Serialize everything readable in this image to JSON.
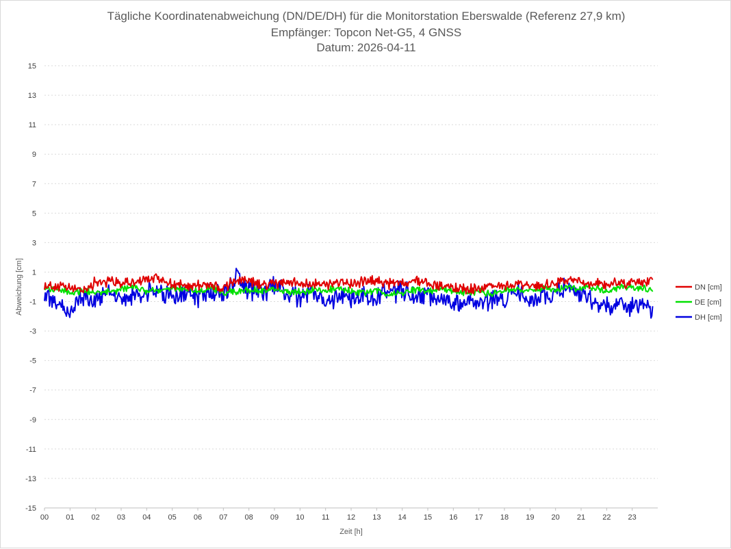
{
  "chart_data": {
    "type": "line",
    "title": "Tägliche Koordinatenabweichung (DN/DE/DH) für die Monitorstation Eberswalde (Referenz 27,9 km)",
    "subtitle_1": "Empfänger: Topcon Net-G5, 4 GNSS",
    "subtitle_2": "Datum: 2026-04-11",
    "xlabel": "Zeit [h]",
    "ylabel": "Abweichung [cm]",
    "xlim": [
      0,
      24
    ],
    "ylim": [
      -15,
      15
    ],
    "grid": true,
    "legend_position": "right",
    "x_tick_labels": [
      "00",
      "01",
      "02",
      "03",
      "04",
      "05",
      "06",
      "07",
      "08",
      "09",
      "10",
      "11",
      "12",
      "13",
      "14",
      "15",
      "16",
      "17",
      "18",
      "19",
      "20",
      "21",
      "22",
      "23"
    ],
    "y_tick_labels": [
      "-15",
      "-13",
      "-11",
      "-9",
      "-7",
      "-5",
      "-3",
      "-1",
      "1",
      "3",
      "5",
      "7",
      "9",
      "11",
      "13",
      "15"
    ],
    "x": [
      0,
      0.5,
      1,
      1.5,
      2,
      2.5,
      3,
      3.5,
      4,
      4.5,
      5,
      5.5,
      6,
      6.5,
      7,
      7.5,
      8,
      8.5,
      9,
      9.5,
      10,
      10.5,
      11,
      11.5,
      12,
      12.5,
      13,
      13.5,
      14,
      14.5,
      15,
      15.5,
      16,
      16.5,
      17,
      17.5,
      18,
      18.5,
      19,
      19.5,
      20,
      20.5,
      21,
      21.5,
      22,
      22.5,
      23,
      23.5,
      23.8
    ],
    "series": [
      {
        "name": "DN [cm]",
        "color": "#e00000",
        "values": [
          0.1,
          0.0,
          -0.1,
          -0.2,
          0.3,
          0.4,
          0.2,
          0.3,
          0.5,
          0.6,
          0.2,
          0.0,
          0.2,
          0.1,
          -0.2,
          0.5,
          0.4,
          0.1,
          0.2,
          0.3,
          0.2,
          0.3,
          0.1,
          0.4,
          0.2,
          0.3,
          0.4,
          0.2,
          0.3,
          0.5,
          0.2,
          0.1,
          0.0,
          -0.1,
          -0.2,
          0.2,
          0.0,
          0.1,
          0.0,
          0.1,
          0.3,
          0.5,
          0.4,
          0.2,
          0.1,
          0.3,
          0.2,
          0.3,
          0.6
        ]
      },
      {
        "name": "DE [cm]",
        "color": "#00e000",
        "values": [
          -0.1,
          -0.2,
          -0.4,
          -0.3,
          -0.3,
          -0.4,
          -0.2,
          0.1,
          -0.3,
          -0.2,
          -0.1,
          -0.1,
          -0.3,
          -0.1,
          -0.4,
          -0.3,
          -0.2,
          -0.3,
          -0.2,
          -0.3,
          -0.4,
          -0.2,
          -0.3,
          -0.1,
          -0.3,
          -0.4,
          -0.3,
          -0.5,
          -0.4,
          -0.2,
          -0.3,
          -0.1,
          -0.3,
          -0.4,
          -0.3,
          -0.5,
          -0.3,
          -0.2,
          -0.3,
          -0.1,
          -0.3,
          0.0,
          -0.2,
          -0.1,
          -0.3,
          -0.1,
          0.0,
          -0.1,
          -0.3
        ]
      },
      {
        "name": "DH [cm]",
        "color": "#0000e0",
        "values": [
          -0.4,
          -1.2,
          -1.6,
          -0.7,
          -0.9,
          -0.4,
          -0.9,
          -0.6,
          -0.5,
          -0.4,
          -0.6,
          -0.5,
          -0.7,
          -0.3,
          -0.6,
          0.6,
          -0.2,
          -0.3,
          -0.1,
          -0.5,
          -0.6,
          -0.3,
          -1.1,
          -0.4,
          -0.8,
          -0.6,
          -0.7,
          -0.4,
          -0.3,
          -0.6,
          -0.5,
          -0.8,
          -1.3,
          -0.9,
          -0.8,
          -1.0,
          -0.8,
          -0.6,
          -0.8,
          -0.5,
          -0.3,
          -0.1,
          -0.6,
          -1.1,
          -1.3,
          -0.9,
          -1.5,
          -1.1,
          -1.4
        ]
      }
    ]
  }
}
